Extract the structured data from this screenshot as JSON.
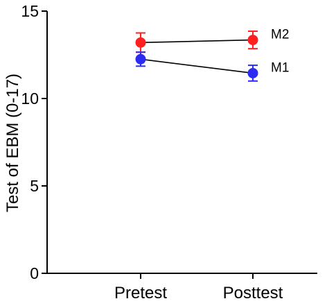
{
  "chart_data": {
    "type": "line",
    "title": "",
    "xlabel": "",
    "ylabel": "Test of EBM (0-17)",
    "ylim": [
      0,
      15
    ],
    "yticks": [
      0,
      5,
      10,
      15
    ],
    "categories": [
      "Pretest",
      "Posttest"
    ],
    "grid": false,
    "legend": "none",
    "series": [
      {
        "name": "M2",
        "color": "#ff1f1f",
        "values": [
          13.2,
          13.35
        ],
        "error": [
          0.55,
          0.5
        ]
      },
      {
        "name": "M1",
        "color": "#2b2bf2",
        "values": [
          12.25,
          11.45
        ],
        "error": [
          0.4,
          0.45
        ]
      }
    ]
  }
}
